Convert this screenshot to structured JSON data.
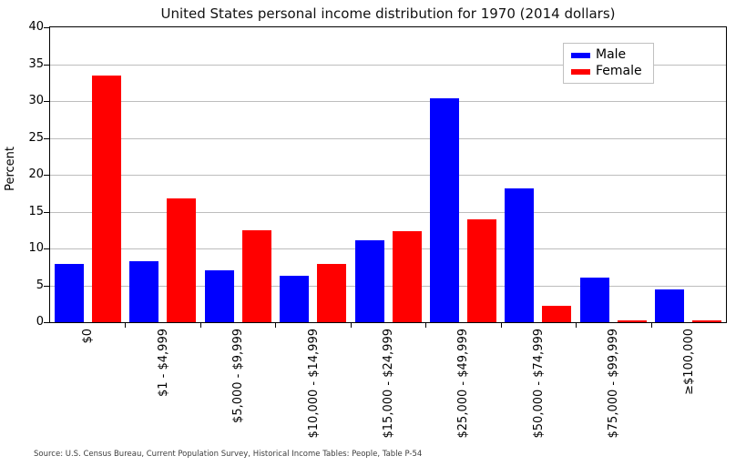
{
  "chart_data": {
    "type": "bar",
    "title": "United States personal income distribution for 1970 (2014 dollars)",
    "xlabel": "",
    "ylabel": "Percent",
    "ylim": [
      0,
      40
    ],
    "yticks": [
      0,
      5,
      10,
      15,
      20,
      25,
      30,
      35,
      40
    ],
    "grid": "horizontal",
    "gridline_color": "#bdbdbd",
    "legend_position": "upper right",
    "xlabel_rotation": 90,
    "categories": [
      "$0",
      "$1 - $4,999",
      "$5,000 - $9,999",
      "$10,000 - $14,999",
      "$15,000 - $24,999",
      "$25,000 - $49,999",
      "$50,000 - $74,999",
      "$75,000 - $99,999",
      "≥$100,000"
    ],
    "series": [
      {
        "name": "Male",
        "color": "#0000ff",
        "values": [
          7.9,
          8.3,
          7.0,
          6.3,
          11.1,
          30.4,
          18.1,
          6.0,
          4.4
        ]
      },
      {
        "name": "Female",
        "color": "#ff0000",
        "values": [
          33.5,
          16.8,
          12.5,
          7.9,
          12.3,
          14.0,
          2.2,
          0.3,
          0.2
        ]
      }
    ]
  },
  "footer": {
    "source": "Source: U.S. Census Bureau, Current Population Survey, Historical Income Tables: People, Table P-54"
  }
}
